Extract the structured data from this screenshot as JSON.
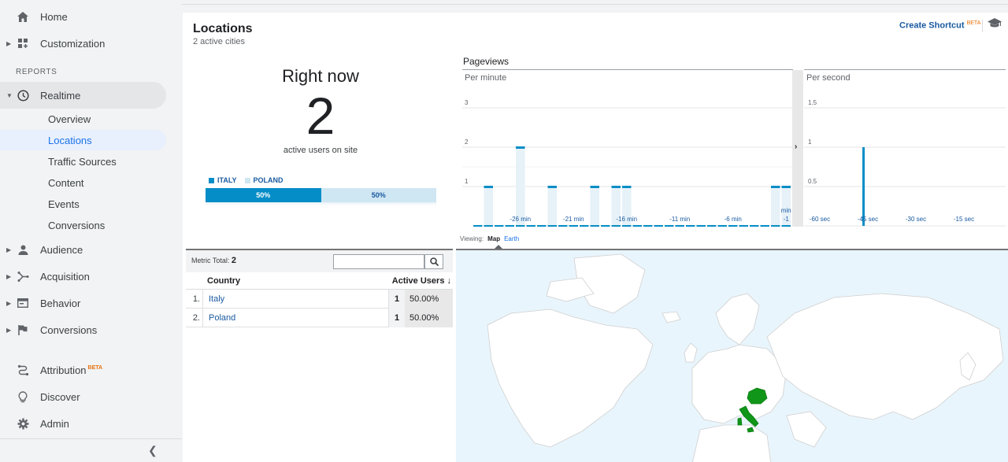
{
  "sidebar": {
    "items": [
      {
        "label": "Home",
        "icon": "home-icon"
      },
      {
        "label": "Customization",
        "icon": "dashboard-icon"
      }
    ],
    "section_title": "REPORTS",
    "realtime": {
      "label": "Realtime",
      "icon": "clock-icon",
      "children": [
        "Overview",
        "Locations",
        "Traffic Sources",
        "Content",
        "Events",
        "Conversions"
      ],
      "active_child": "Locations"
    },
    "groups": [
      {
        "label": "Audience",
        "icon": "person-icon"
      },
      {
        "label": "Acquisition",
        "icon": "acquisition-icon"
      },
      {
        "label": "Behavior",
        "icon": "behavior-icon"
      },
      {
        "label": "Conversions",
        "icon": "flag-icon"
      }
    ],
    "bottom": [
      {
        "label": "Attribution",
        "icon": "attribution-icon",
        "badge": "BETA"
      },
      {
        "label": "Discover",
        "icon": "lightbulb-icon"
      },
      {
        "label": "Admin",
        "icon": "gear-icon"
      }
    ],
    "collapse_icon": "chevron-left-icon"
  },
  "header": {
    "title": "Locations",
    "subtitle": "2 active cities",
    "shortcut_label": "Create Shortcut",
    "shortcut_badge": "BETA",
    "help_icon": "graduation-cap-icon"
  },
  "right_now": {
    "title": "Right now",
    "count": "2",
    "label": "active users on site",
    "legend": [
      {
        "name": "ITALY",
        "color": "#058dc7"
      },
      {
        "name": "POLAND",
        "color": "#cfe6f3"
      }
    ],
    "split": [
      {
        "label": "50%",
        "fraction": 0.5,
        "color": "#058dc7",
        "text_color": "#ffffff"
      },
      {
        "label": "50%",
        "fraction": 0.5,
        "color": "#cfe6f3",
        "text_color": "#1a5aa0"
      }
    ]
  },
  "pageviews": {
    "title": "Pageviews",
    "per_minute": {
      "caption": "Per minute",
      "y_ticks": [
        "1",
        "2",
        "3"
      ],
      "x_ticks": [
        "-26 min",
        "-21 min",
        "-16 min",
        "-11 min",
        "-6 min",
        "-1"
      ],
      "x_tick_extra": "min",
      "minutes": [
        -30,
        -29,
        -28,
        -27,
        -26,
        -25,
        -24,
        -23,
        -22,
        -21,
        -20,
        -19,
        -18,
        -17,
        -16,
        -15,
        -14,
        -13,
        -12,
        -11,
        -10,
        -9,
        -8,
        -7,
        -6,
        -5,
        -4,
        -3,
        -2,
        -1
      ],
      "values": [
        0,
        1,
        0,
        0,
        2,
        0,
        0,
        1,
        0,
        0,
        0,
        1,
        0,
        1,
        1,
        0,
        0,
        0,
        0,
        0,
        0,
        0,
        0,
        0,
        0,
        0,
        0,
        0,
        1,
        1
      ],
      "ylim": [
        0,
        3
      ]
    },
    "per_second": {
      "caption": "Per second",
      "y_ticks": [
        "0.5",
        "1",
        "1.5"
      ],
      "x_ticks": [
        "-60 sec",
        "-45 sec",
        "-30 sec",
        "-15 sec"
      ],
      "spike_second": -44,
      "spike_value": 1,
      "ylim": [
        0,
        1.5
      ]
    },
    "expand_icon": "chevron-right-icon"
  },
  "viewing": {
    "label": "Viewing:",
    "tabs": [
      "Map",
      "Earth"
    ],
    "selected": "Map"
  },
  "table": {
    "metric_label": "Metric Total:",
    "metric_value": "2",
    "search_placeholder": "",
    "search_icon": "search-icon",
    "columns": [
      "Country",
      "Active Users"
    ],
    "sort_icon": "arrow-down-icon",
    "rows": [
      {
        "index": "1.",
        "country": "Italy",
        "value": "1",
        "percent": "50.00%"
      },
      {
        "index": "2.",
        "country": "Poland",
        "value": "1",
        "percent": "50.00%"
      }
    ]
  },
  "map": {
    "highlight_color": "#109618",
    "highlighted": [
      "Italy",
      "Poland"
    ]
  }
}
